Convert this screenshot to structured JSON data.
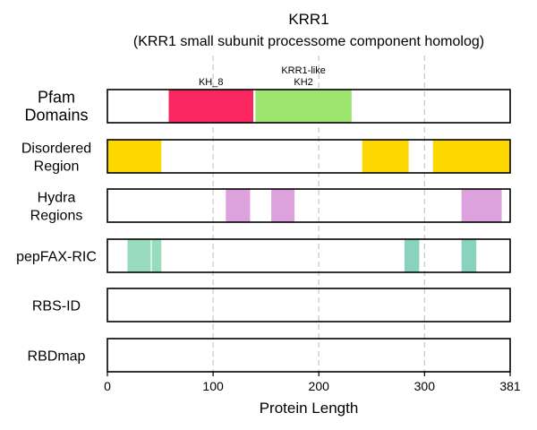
{
  "chart_data": {
    "type": "feature_track",
    "title": "KRR1",
    "subtitle": "(KRR1 small subunit processome component homolog)",
    "xlabel": "Protein Length",
    "xlim": [
      0,
      381
    ],
    "xticks": [
      0,
      100,
      200,
      300,
      381
    ],
    "grid": "vertical dashed lines at 100, 200, 300",
    "tracks": [
      {
        "label": "Pfam Domains",
        "segments": [
          {
            "start": 58,
            "end": 138,
            "color": "#fa2660",
            "label": "KH_8"
          },
          {
            "start": 140,
            "end": 231,
            "color": "#9ee56f",
            "label": "KRR1-like KH2"
          }
        ]
      },
      {
        "label": "Disordered Region",
        "segments": [
          {
            "start": 0,
            "end": 51,
            "color": "#ffd700"
          },
          {
            "start": 241,
            "end": 285,
            "color": "#ffd700"
          },
          {
            "start": 308,
            "end": 381,
            "color": "#ffd700"
          }
        ]
      },
      {
        "label": "Hydra Regions",
        "segments": [
          {
            "start": 112,
            "end": 135,
            "color": "#dda1dd"
          },
          {
            "start": 155,
            "end": 177,
            "color": "#dda1dd"
          },
          {
            "start": 335,
            "end": 373,
            "color": "#dda1dd"
          }
        ]
      },
      {
        "label": "pepFAX-RIC",
        "segments": [
          {
            "start": 19,
            "end": 41,
            "color": "#99dcbd"
          },
          {
            "start": 42,
            "end": 51,
            "color": "#99dcbd"
          },
          {
            "start": 281,
            "end": 295,
            "color": "#89d2be"
          },
          {
            "start": 335,
            "end": 349,
            "color": "#89d2be"
          }
        ]
      },
      {
        "label": "RBS-ID",
        "segments": []
      },
      {
        "label": "RBDmap",
        "segments": []
      }
    ]
  }
}
